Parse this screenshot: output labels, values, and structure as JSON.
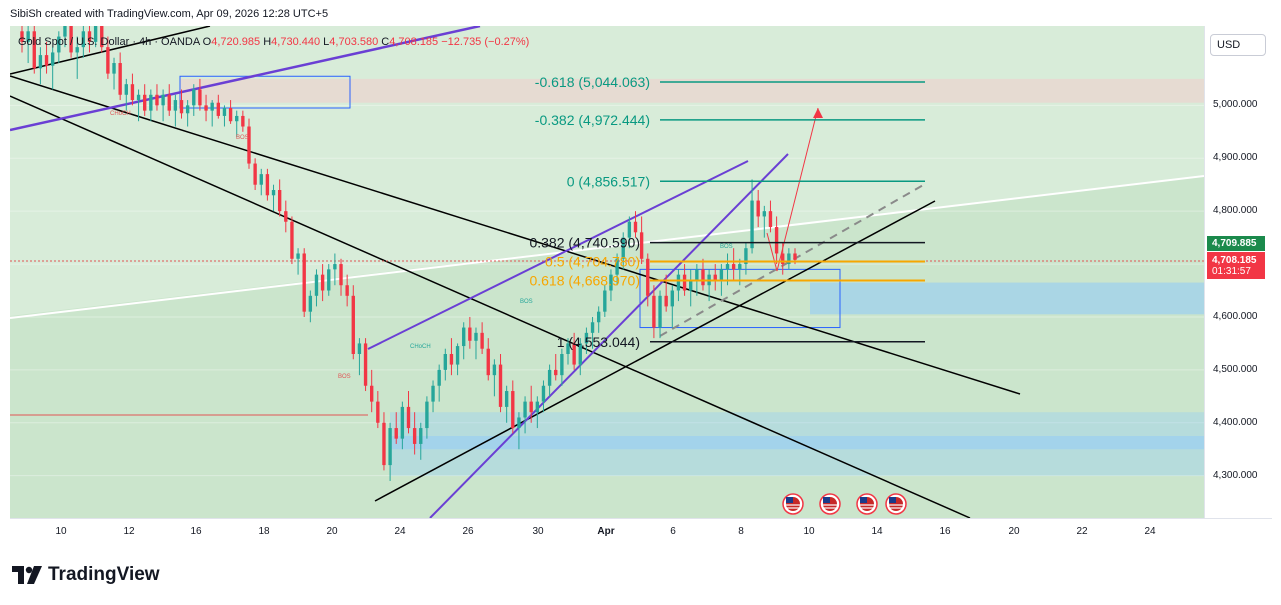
{
  "header": {
    "text": "SibiSh created with TradingView.com, Apr 09, 2026 12:28 UTC+5"
  },
  "legend": {
    "symbol": "Gold Spot / U.S. Dollar · 4h · OANDA",
    "o_label": "O",
    "o_value": "4,720.985",
    "h_label": "H",
    "h_value": "4,730.440",
    "l_label": "L",
    "l_value": "4,703.580",
    "c_label": "C",
    "c_value": "4,708.185",
    "change": "−12.735 (−0.27%)"
  },
  "currency_button": "USD",
  "price_tags": {
    "last_price": "4,709.885",
    "close_price": "4,708.185",
    "countdown": "01:31:57"
  },
  "colors": {
    "up": "#26a69a",
    "down": "#f23645",
    "fib": "#089981",
    "fib_mid": "#f7a600",
    "channel": "#6a3fd4",
    "zone_green": "#c8e6c9",
    "zone_blue": "#90caf9",
    "last_tag": "#1b8a4c",
    "close_tag": "#f23645"
  },
  "chart_data": {
    "type": "candlestick",
    "symbol": "XAUUSD",
    "ylim": [
      4220,
      5150
    ],
    "y_ticks": [
      4300,
      4400,
      4500,
      4600,
      4700,
      4800,
      4900,
      5000
    ],
    "y_tick_labels": [
      "4,300.000",
      "4,400.000",
      "4,500.000",
      "4,600.000",
      "4,700.000",
      "4,800.000",
      "4,900.000",
      "5,000.000"
    ],
    "x_tick_labels": [
      "10",
      "12",
      "16",
      "18",
      "20",
      "24",
      "26",
      "30",
      "Apr",
      "6",
      "8",
      "10",
      "14",
      "16",
      "20",
      "22",
      "24"
    ],
    "fib_levels": [
      {
        "label": "-0.618 (5,044.063)",
        "value": 5044.063
      },
      {
        "label": "-0.382 (4,972.444)",
        "value": 4972.444
      },
      {
        "label": "0 (4,856.517)",
        "value": 4856.517
      },
      {
        "label": "0.382 (4,740.590)",
        "value": 4740.59
      },
      {
        "label": "0.5 (4,704.780)",
        "value": 4704.78
      },
      {
        "label": "0.618 (4,668.970)",
        "value": 4668.97
      },
      {
        "label": "1 (4,553.044)",
        "value": 4553.044
      }
    ],
    "annotations": [
      "CHoCH",
      "BOS",
      "BOS",
      "CHoCH",
      "BOS",
      "BOS"
    ],
    "candles": [
      [
        5140,
        5175,
        5100,
        5120
      ],
      [
        5120,
        5160,
        5080,
        5140
      ],
      [
        5140,
        5150,
        5060,
        5070
      ],
      [
        5070,
        5110,
        5040,
        5095
      ],
      [
        5095,
        5120,
        5060,
        5075
      ],
      [
        5075,
        5110,
        5030,
        5100
      ],
      [
        5100,
        5140,
        5080,
        5130
      ],
      [
        5130,
        5180,
        5110,
        5150
      ],
      [
        5150,
        5170,
        5090,
        5100
      ],
      [
        5100,
        5130,
        5050,
        5110
      ],
      [
        5110,
        5150,
        5090,
        5140
      ],
      [
        5140,
        5160,
        5100,
        5120
      ],
      [
        5120,
        5170,
        5110,
        5160
      ],
      [
        5160,
        5170,
        5100,
        5110
      ],
      [
        5110,
        5130,
        5050,
        5060
      ],
      [
        5060,
        5090,
        5030,
        5080
      ],
      [
        5080,
        5100,
        5010,
        5020
      ],
      [
        5020,
        5050,
        4990,
        5040
      ],
      [
        5040,
        5060,
        5000,
        5010
      ],
      [
        5010,
        5030,
        4970,
        5020
      ],
      [
        5020,
        5040,
        4980,
        4990
      ],
      [
        4990,
        5030,
        4970,
        5020
      ],
      [
        5020,
        5040,
        4990,
        5000
      ],
      [
        5000,
        5030,
        4970,
        5020
      ],
      [
        5020,
        5040,
        4980,
        4990
      ],
      [
        4990,
        5020,
        4960,
        5010
      ],
      [
        5010,
        5030,
        4975,
        4985
      ],
      [
        4985,
        5010,
        4960,
        5000
      ],
      [
        5000,
        5040,
        4980,
        5030
      ],
      [
        5030,
        5050,
        4990,
        5000
      ],
      [
        5000,
        5020,
        4970,
        4990
      ],
      [
        4990,
        5010,
        4960,
        5005
      ],
      [
        5005,
        5020,
        4975,
        4980
      ],
      [
        4980,
        5000,
        4960,
        4995
      ],
      [
        4995,
        5010,
        4965,
        4970
      ],
      [
        4970,
        4990,
        4940,
        4980
      ],
      [
        4980,
        4990,
        4950,
        4960
      ],
      [
        4960,
        4975,
        4880,
        4890
      ],
      [
        4890,
        4900,
        4840,
        4850
      ],
      [
        4850,
        4880,
        4830,
        4870
      ],
      [
        4870,
        4880,
        4820,
        4830
      ],
      [
        4830,
        4850,
        4800,
        4840
      ],
      [
        4840,
        4860,
        4790,
        4800
      ],
      [
        4800,
        4820,
        4760,
        4780
      ],
      [
        4780,
        4790,
        4700,
        4710
      ],
      [
        4710,
        4730,
        4680,
        4720
      ],
      [
        4720,
        4730,
        4600,
        4610
      ],
      [
        4610,
        4650,
        4590,
        4640
      ],
      [
        4640,
        4690,
        4620,
        4680
      ],
      [
        4680,
        4700,
        4630,
        4650
      ],
      [
        4650,
        4700,
        4640,
        4690
      ],
      [
        4690,
        4720,
        4660,
        4700
      ],
      [
        4700,
        4710,
        4640,
        4660
      ],
      [
        4660,
        4680,
        4620,
        4640
      ],
      [
        4640,
        4660,
        4520,
        4530
      ],
      [
        4530,
        4560,
        4490,
        4550
      ],
      [
        4550,
        4560,
        4460,
        4470
      ],
      [
        4470,
        4500,
        4420,
        4440
      ],
      [
        4440,
        4460,
        4390,
        4400
      ],
      [
        4400,
        4420,
        4310,
        4320
      ],
      [
        4320,
        4400,
        4290,
        4390
      ],
      [
        4390,
        4420,
        4360,
        4370
      ],
      [
        4370,
        4440,
        4350,
        4430
      ],
      [
        4430,
        4460,
        4380,
        4390
      ],
      [
        4390,
        4420,
        4340,
        4360
      ],
      [
        4360,
        4400,
        4330,
        4390
      ],
      [
        4390,
        4450,
        4370,
        4440
      ],
      [
        4440,
        4480,
        4420,
        4470
      ],
      [
        4470,
        4510,
        4440,
        4500
      ],
      [
        4500,
        4540,
        4480,
        4530
      ],
      [
        4530,
        4560,
        4490,
        4510
      ],
      [
        4510,
        4550,
        4490,
        4545
      ],
      [
        4545,
        4590,
        4520,
        4580
      ],
      [
        4580,
        4600,
        4540,
        4555
      ],
      [
        4555,
        4580,
        4520,
        4570
      ],
      [
        4570,
        4590,
        4530,
        4540
      ],
      [
        4540,
        4560,
        4480,
        4490
      ],
      [
        4490,
        4520,
        4450,
        4510
      ],
      [
        4510,
        4530,
        4420,
        4430
      ],
      [
        4430,
        4470,
        4400,
        4460
      ],
      [
        4460,
        4480,
        4380,
        4390
      ],
      [
        4390,
        4420,
        4350,
        4410
      ],
      [
        4410,
        4450,
        4380,
        4440
      ],
      [
        4440,
        4470,
        4400,
        4420
      ],
      [
        4420,
        4450,
        4390,
        4440
      ],
      [
        4440,
        4480,
        4420,
        4470
      ],
      [
        4470,
        4510,
        4450,
        4500
      ],
      [
        4500,
        4530,
        4480,
        4490
      ],
      [
        4490,
        4540,
        4470,
        4530
      ],
      [
        4530,
        4560,
        4510,
        4550
      ],
      [
        4550,
        4570,
        4500,
        4510
      ],
      [
        4510,
        4560,
        4490,
        4550
      ],
      [
        4550,
        4580,
        4530,
        4570
      ],
      [
        4570,
        4600,
        4540,
        4590
      ],
      [
        4590,
        4620,
        4570,
        4610
      ],
      [
        4610,
        4660,
        4600,
        4650
      ],
      [
        4650,
        4690,
        4630,
        4680
      ],
      [
        4680,
        4720,
        4660,
        4710
      ],
      [
        4710,
        4760,
        4690,
        4750
      ],
      [
        4750,
        4790,
        4730,
        4780
      ],
      [
        4780,
        4800,
        4750,
        4760
      ],
      [
        4760,
        4790,
        4700,
        4710
      ],
      [
        4710,
        4720,
        4620,
        4640
      ],
      [
        4640,
        4660,
        4560,
        4580
      ],
      [
        4580,
        4650,
        4560,
        4640
      ],
      [
        4640,
        4680,
        4610,
        4620
      ],
      [
        4620,
        4660,
        4580,
        4650
      ],
      [
        4650,
        4690,
        4630,
        4680
      ],
      [
        4680,
        4700,
        4640,
        4650
      ],
      [
        4650,
        4690,
        4620,
        4670
      ],
      [
        4670,
        4700,
        4640,
        4690
      ],
      [
        4690,
        4710,
        4650,
        4660
      ],
      [
        4660,
        4690,
        4630,
        4680
      ],
      [
        4680,
        4700,
        4650,
        4670
      ],
      [
        4670,
        4700,
        4640,
        4690
      ],
      [
        4690,
        4720,
        4660,
        4700
      ],
      [
        4700,
        4730,
        4670,
        4690
      ],
      [
        4690,
        4710,
        4660,
        4700
      ],
      [
        4700,
        4740,
        4680,
        4730
      ],
      [
        4730,
        4860,
        4720,
        4820
      ],
      [
        4820,
        4840,
        4770,
        4790
      ],
      [
        4790,
        4810,
        4750,
        4800
      ],
      [
        4800,
        4820,
        4760,
        4770
      ],
      [
        4770,
        4790,
        4700,
        4720
      ],
      [
        4720,
        4740,
        4680,
        4700
      ],
      [
        4700,
        4730,
        4690,
        4720
      ],
      [
        4720,
        4730,
        4700,
        4708
      ]
    ]
  }
}
